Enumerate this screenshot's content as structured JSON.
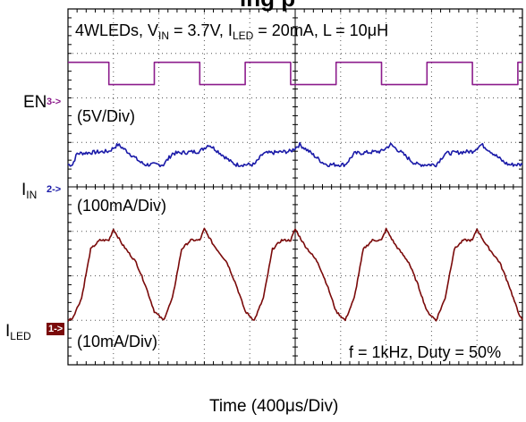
{
  "title_partial": "ing p",
  "conditions": {
    "prefix": "4WLEDs, V",
    "vin_sub": "IN",
    "vin_value": " = 3.7V, I",
    "iled_sub": "LED",
    "iled_value": " = 20mA, L = 10",
    "mu": "μ",
    "unit": "H"
  },
  "channels": [
    {
      "label": "EN",
      "label_sub": "",
      "marker": "3->",
      "scale": "(5V/Div)",
      "color": "#8c1c8c",
      "marker_style": "text"
    },
    {
      "label": "I",
      "label_sub": "IN",
      "marker": "2->",
      "scale": "(100mA/Div)",
      "color": "#1a1aa8",
      "marker_style": "text"
    },
    {
      "label": "I",
      "label_sub": "LED",
      "marker": "1->",
      "scale": "(10mA/Div)",
      "color": "#7a0a0a",
      "marker_style": "box"
    }
  ],
  "annotation": "f = 1kHz, Duty = 50%",
  "xlabel_prefix": "Time  (400",
  "xlabel_mu": "μ",
  "xlabel_suffix": "s/Div)",
  "chart_data": {
    "type": "line",
    "x_unit": "div",
    "xlim": [
      0,
      10
    ],
    "ylim": [
      0,
      8
    ],
    "grid": true,
    "series": [
      {
        "name": "EN",
        "x": [
          0,
          0.9,
          0.9,
          1.9,
          1.9,
          2.9,
          2.9,
          3.9,
          3.9,
          4.9,
          4.9,
          5.9,
          5.9,
          6.9,
          6.9,
          7.9,
          7.9,
          8.9,
          8.9,
          9.9,
          9.9,
          10
        ],
        "y": [
          6.8,
          6.8,
          6.3,
          6.3,
          6.8,
          6.8,
          6.3,
          6.3,
          6.8,
          6.8,
          6.3,
          6.3,
          6.8,
          6.8,
          6.3,
          6.3,
          6.8,
          6.8,
          6.3,
          6.3,
          6.8,
          6.8
        ]
      },
      {
        "name": "IN",
        "x": [
          0,
          0.1,
          0.2,
          0.9,
          1.1,
          1.3,
          1.6,
          1.7,
          1.9,
          2.1,
          2.3,
          2.9,
          3.1,
          3.3,
          3.6,
          3.7,
          3.9,
          4.1,
          4.3,
          4.9,
          5.1,
          5.3,
          5.6,
          5.7,
          5.9,
          6.1,
          6.3,
          6.9,
          7.1,
          7.3,
          7.6,
          7.7,
          7.9,
          8.1,
          8.3,
          8.9,
          9.1,
          9.3,
          9.6,
          9.7,
          9.9,
          10
        ],
        "y": [
          4.5,
          4.5,
          4.75,
          4.8,
          4.95,
          4.8,
          4.55,
          4.5,
          4.5,
          4.5,
          4.75,
          4.8,
          4.95,
          4.8,
          4.55,
          4.5,
          4.5,
          4.5,
          4.75,
          4.8,
          4.95,
          4.8,
          4.55,
          4.5,
          4.5,
          4.5,
          4.75,
          4.8,
          4.95,
          4.8,
          4.55,
          4.5,
          4.5,
          4.5,
          4.75,
          4.8,
          4.95,
          4.8,
          4.55,
          4.5,
          4.5,
          4.5
        ]
      },
      {
        "name": "LED",
        "x": [
          0,
          0.1,
          0.3,
          0.5,
          0.7,
          0.9,
          1.0,
          1.2,
          1.5,
          1.7,
          1.9,
          2.1,
          2.3,
          2.5,
          2.7,
          2.9,
          3.0,
          3.2,
          3.5,
          3.7,
          3.9,
          4.1,
          4.3,
          4.5,
          4.7,
          4.9,
          5.0,
          5.2,
          5.5,
          5.7,
          5.9,
          6.1,
          6.3,
          6.5,
          6.7,
          6.9,
          7.0,
          7.2,
          7.5,
          7.7,
          7.9,
          8.1,
          8.3,
          8.5,
          8.7,
          8.9,
          9.0,
          9.2,
          9.5,
          9.7,
          9.9,
          10
        ],
        "y": [
          1.0,
          1.05,
          1.5,
          2.6,
          2.8,
          2.8,
          3.05,
          2.7,
          2.3,
          1.8,
          1.2,
          1.0,
          1.5,
          2.6,
          2.8,
          2.8,
          3.05,
          2.7,
          2.3,
          1.8,
          1.2,
          1.0,
          1.5,
          2.6,
          2.8,
          2.8,
          3.05,
          2.7,
          2.3,
          1.8,
          1.2,
          1.0,
          1.5,
          2.6,
          2.8,
          2.8,
          3.05,
          2.7,
          2.3,
          1.8,
          1.2,
          1.0,
          1.5,
          2.6,
          2.8,
          2.8,
          3.05,
          2.7,
          2.3,
          1.8,
          1.2,
          1.0
        ]
      }
    ]
  }
}
